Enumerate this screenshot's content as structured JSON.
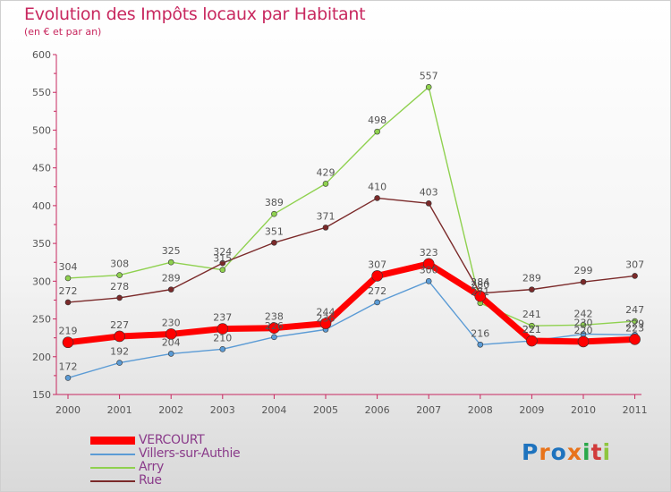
{
  "chart_data": {
    "type": "line",
    "title": "Evolution des Impôts locaux par Habitant",
    "subtitle": "(en € et par an)",
    "categories": [
      "2000",
      "2001",
      "2002",
      "2003",
      "2004",
      "2005",
      "2006",
      "2007",
      "2008",
      "2009",
      "2010",
      "2011"
    ],
    "ylim": [
      150,
      600
    ],
    "yticks": [
      150,
      200,
      250,
      300,
      350,
      400,
      450,
      500,
      550,
      600
    ],
    "grid": false,
    "legend_position": "bottom-left",
    "series": [
      {
        "name": "VERCOURT",
        "color": "#ff0000",
        "emphasis": true,
        "values": [
          219,
          227,
          230,
          237,
          238,
          244,
          307,
          323,
          280,
          221,
          220,
          223
        ]
      },
      {
        "name": "Villers-sur-Authie",
        "color": "#5b9bd5",
        "emphasis": false,
        "values": [
          172,
          192,
          204,
          210,
          226,
          236,
          272,
          300,
          216,
          221,
          230,
          229
        ]
      },
      {
        "name": "Arry",
        "color": "#8fd14f",
        "emphasis": false,
        "values": [
          304,
          308,
          325,
          315,
          389,
          429,
          498,
          557,
          271,
          241,
          242,
          247
        ]
      },
      {
        "name": "Rue",
        "color": "#7b2a2a",
        "emphasis": false,
        "values": [
          272,
          278,
          289,
          324,
          351,
          371,
          410,
          403,
          284,
          289,
          299,
          307
        ]
      }
    ]
  },
  "logo": {
    "text": "Proxiti",
    "colors": [
      "#1e73be",
      "#e8731a",
      "#1e73be",
      "#e8731a",
      "#2aa84a",
      "#d13b3b",
      "#8fc63f"
    ]
  }
}
